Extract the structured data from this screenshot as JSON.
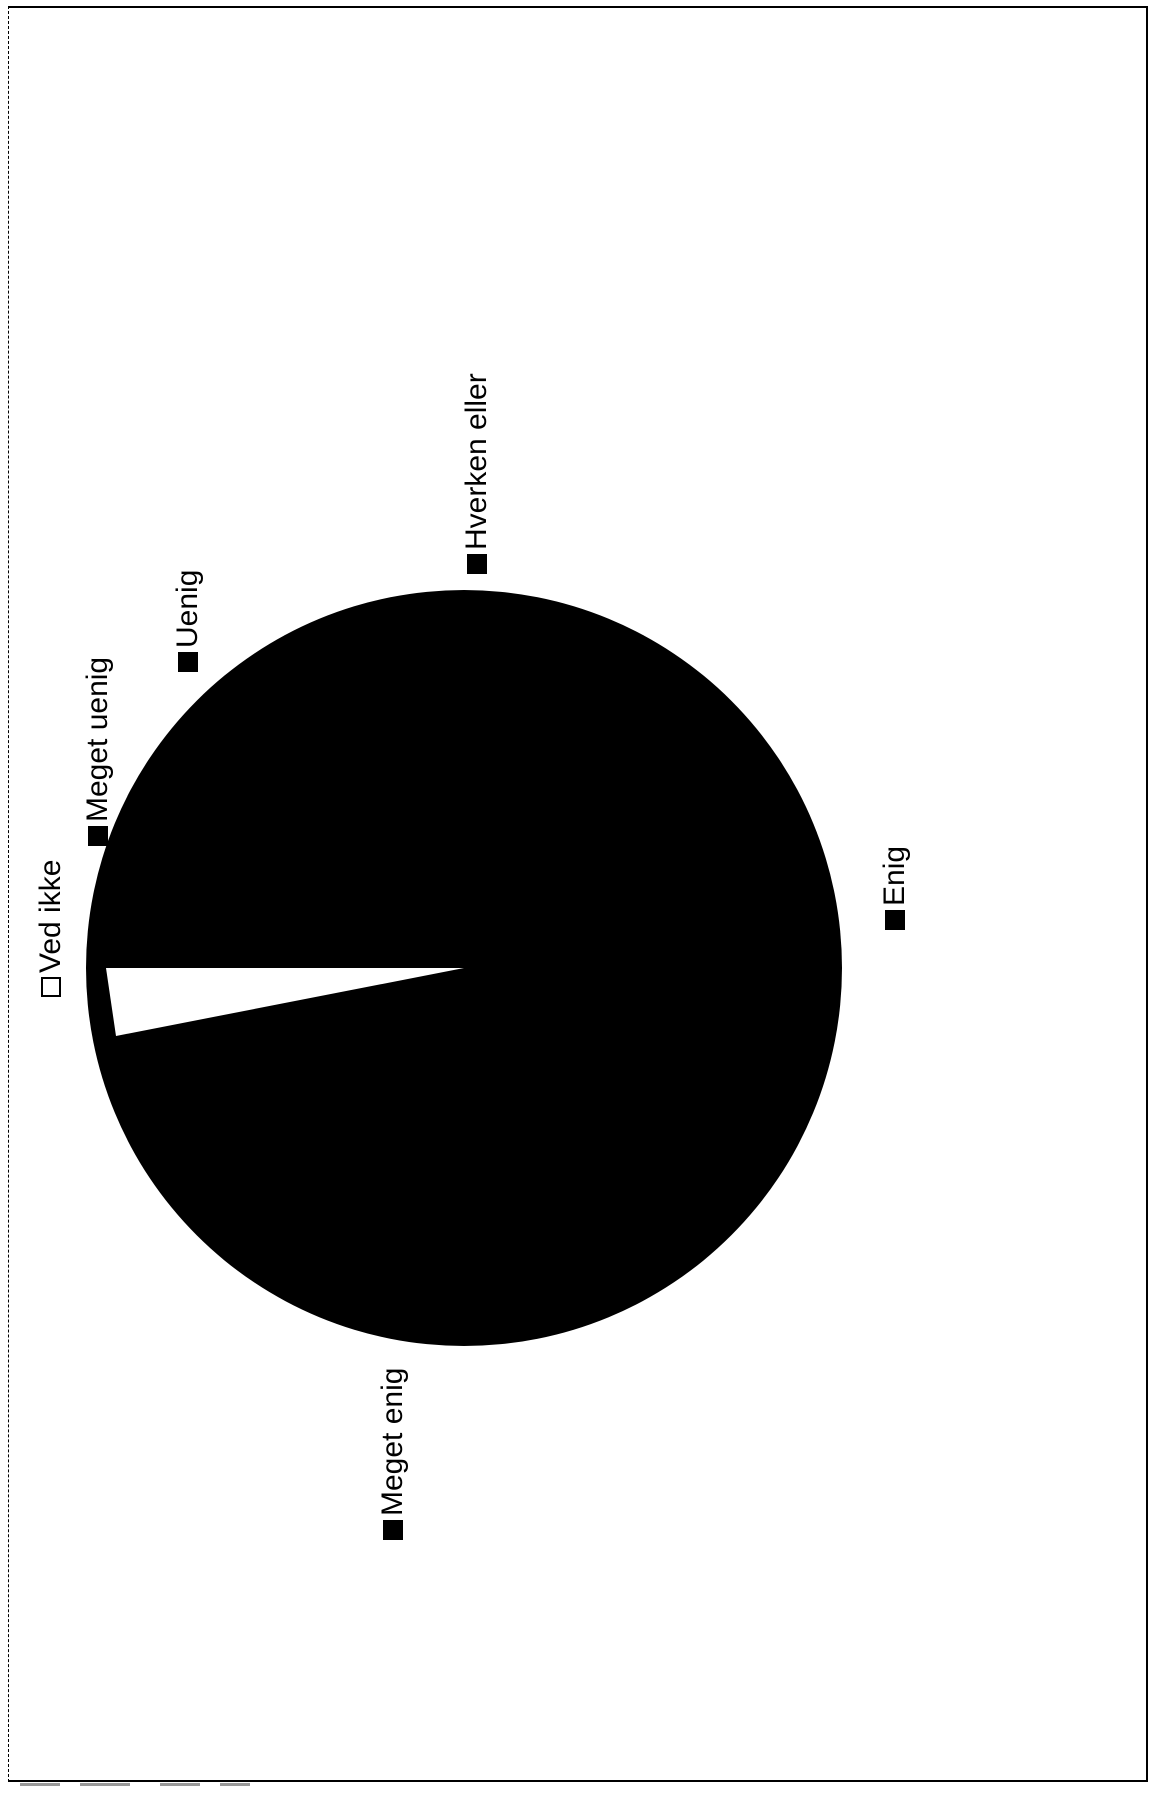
{
  "chart_data": {
    "type": "pie",
    "slices": [
      {
        "label": "Ved ikke",
        "value": 3,
        "color": "#ffffff"
      },
      {
        "label": "Meget uenig",
        "value": 0,
        "color": "#000000"
      },
      {
        "label": "Uenig",
        "value": 0,
        "color": "#000000"
      },
      {
        "label": "Hverken eller",
        "value": 0,
        "color": "#000000"
      },
      {
        "label": "Enig",
        "value": 0,
        "color": "#000000"
      },
      {
        "label": "Meget enig",
        "value": 97,
        "color": "#000000"
      }
    ]
  },
  "labels": {
    "ved_ikke": "Ved ikke",
    "meget_uenig": "Meget uenig",
    "uenig": "Uenig",
    "hverken_eller": "Hverken eller",
    "enig": "Enig",
    "meget_enig": "Meget enig"
  }
}
